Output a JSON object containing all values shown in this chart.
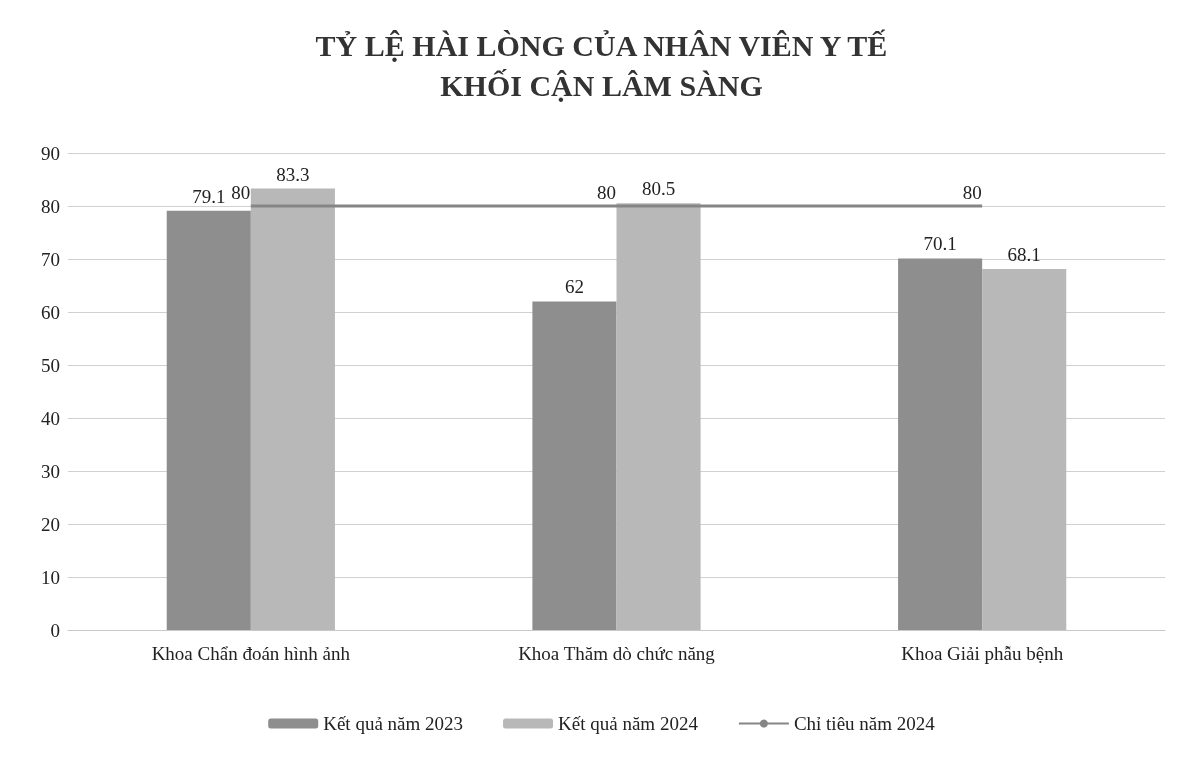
{
  "chart_data": {
    "type": "bar",
    "title": "TỶ LỆ HÀI LÒNG CỦA NHÂN VIÊN Y TẾ\nKHỐI CẬN LÂM SÀNG",
    "categories": [
      "Khoa Chẩn đoán hình ảnh",
      "Khoa Thăm dò chức năng",
      "Khoa Giải phẫu bệnh"
    ],
    "series": [
      {
        "name": "Kết quả năm 2023",
        "color": "#8e8e8e",
        "values": [
          79.1,
          62,
          70.1
        ]
      },
      {
        "name": "Kết quả năm 2024",
        "color": "#b8b8b8",
        "values": [
          83.3,
          80.5,
          68.1
        ]
      },
      {
        "name": "Chỉ tiêu năm 2024",
        "type": "line",
        "color": "#858585",
        "values": [
          80,
          80,
          80
        ]
      }
    ],
    "ylim": [
      0,
      90
    ],
    "yticks": [
      0,
      10,
      20,
      30,
      40,
      50,
      60,
      70,
      80,
      90
    ],
    "grid": "y",
    "legend": "bottom",
    "data_labels": true,
    "marker": "none"
  }
}
